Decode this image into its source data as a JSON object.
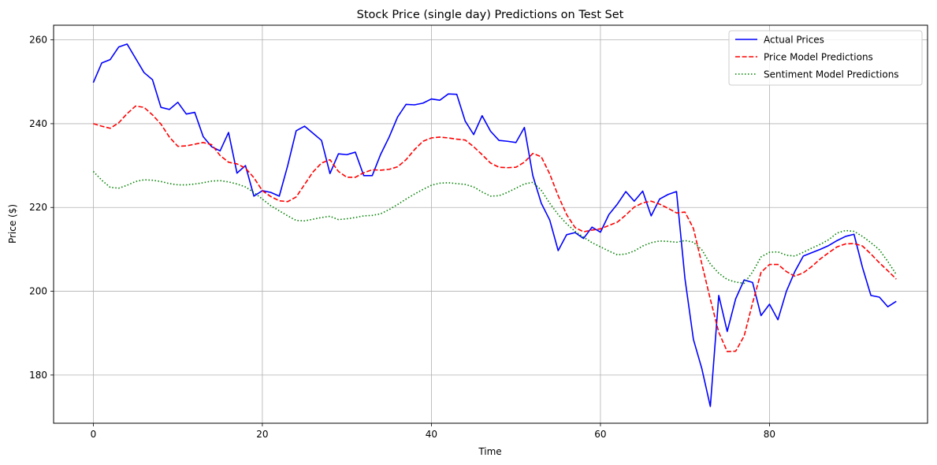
{
  "chart_data": {
    "type": "line",
    "title": "Stock Price (single day) Predictions on Test Set",
    "xlabel": "Time",
    "ylabel": "Price ($)",
    "xlim": [
      -4.7,
      98.7
    ],
    "ylim": [
      168.5,
      263.5
    ],
    "xticks": [
      0,
      20,
      40,
      60,
      80
    ],
    "yticks": [
      180,
      200,
      220,
      240,
      260
    ],
    "grid": true,
    "legend_position": "top-right",
    "series": [
      {
        "name": "Actual Prices",
        "color": "#0000ff",
        "style": "solid",
        "values": [
          249.8,
          254.5,
          255.3,
          258.3,
          259.0,
          255.6,
          252.2,
          250.5,
          243.9,
          243.4,
          245.1,
          242.3,
          242.7,
          236.9,
          234.5,
          233.5,
          237.9,
          228.2,
          230.0,
          222.7,
          224.0,
          223.6,
          222.7,
          230.0,
          238.3,
          239.4,
          237.7,
          236.0,
          228.1,
          232.8,
          232.6,
          233.2,
          227.6,
          227.6,
          232.7,
          236.8,
          241.6,
          244.6,
          244.5,
          244.9,
          245.9,
          245.6,
          247.1,
          247.0,
          240.6,
          237.4,
          241.9,
          238.2,
          236.0,
          235.8,
          235.5,
          239.1,
          227.6,
          221.0,
          217.0,
          209.7,
          213.5,
          214.0,
          212.6,
          215.3,
          214.1,
          218.3,
          220.8,
          223.8,
          221.5,
          223.9,
          218.0,
          222.0,
          223.1,
          223.8,
          203.0,
          188.5,
          181.5,
          172.5,
          199.0,
          190.4,
          198.2,
          202.7,
          202.1,
          194.2,
          196.9,
          193.2,
          200.0,
          204.7,
          208.4,
          209.2,
          210.0,
          210.9,
          212.1,
          213.1,
          213.6,
          205.7,
          199.0,
          198.6,
          196.3,
          197.6
        ]
      },
      {
        "name": "Price Model Predictions",
        "color": "#ff0000",
        "style": "dashed",
        "values": [
          240.0,
          239.4,
          238.9,
          240.2,
          242.4,
          244.2,
          243.9,
          242.1,
          239.9,
          236.8,
          234.6,
          234.7,
          235.1,
          235.5,
          235.0,
          232.4,
          230.8,
          230.4,
          229.4,
          227.1,
          224.0,
          222.6,
          221.6,
          221.4,
          222.5,
          225.5,
          228.5,
          230.6,
          231.4,
          228.6,
          227.2,
          227.2,
          228.3,
          229.0,
          228.9,
          229.1,
          229.7,
          231.4,
          233.8,
          235.8,
          236.6,
          236.8,
          236.6,
          236.3,
          236.1,
          234.5,
          232.6,
          230.6,
          229.6,
          229.5,
          229.6,
          230.8,
          232.9,
          232.1,
          228.0,
          222.8,
          218.3,
          215.2,
          214.2,
          214.6,
          214.9,
          215.7,
          216.5,
          218.2,
          220.1,
          221.1,
          221.5,
          220.8,
          219.8,
          218.7,
          218.9,
          215.0,
          206.5,
          198.1,
          190.2,
          185.6,
          185.7,
          189.3,
          197.2,
          204.5,
          206.4,
          206.4,
          204.7,
          203.6,
          204.4,
          205.9,
          207.7,
          209.2,
          210.6,
          211.3,
          211.4,
          210.8,
          208.9,
          206.8,
          204.9,
          202.9
        ]
      },
      {
        "name": "Sentiment Model Predictions",
        "color": "#008000",
        "style": "dotted",
        "values": [
          228.6,
          226.5,
          224.8,
          224.6,
          225.3,
          226.2,
          226.6,
          226.5,
          226.2,
          225.7,
          225.4,
          225.4,
          225.6,
          225.9,
          226.3,
          226.4,
          226.1,
          225.6,
          224.9,
          223.6,
          222.0,
          220.4,
          219.2,
          218.0,
          216.9,
          216.8,
          217.2,
          217.6,
          217.9,
          217.1,
          217.3,
          217.6,
          218.0,
          218.1,
          218.5,
          219.5,
          220.7,
          222.0,
          223.2,
          224.3,
          225.3,
          225.8,
          225.9,
          225.7,
          225.5,
          224.9,
          223.7,
          222.7,
          222.8,
          223.6,
          224.6,
          225.6,
          226.0,
          224.1,
          221.0,
          218.3,
          216.1,
          214.3,
          212.9,
          211.6,
          210.6,
          209.6,
          208.7,
          208.9,
          209.6,
          210.8,
          211.6,
          212.0,
          211.9,
          211.7,
          212.1,
          211.7,
          209.9,
          206.5,
          204.3,
          202.8,
          202.2,
          201.9,
          204.6,
          208.2,
          209.3,
          209.4,
          208.6,
          208.4,
          209.3,
          210.3,
          211.2,
          212.3,
          213.9,
          214.5,
          214.3,
          213.1,
          211.6,
          209.9,
          207.1,
          204.0
        ]
      }
    ]
  }
}
